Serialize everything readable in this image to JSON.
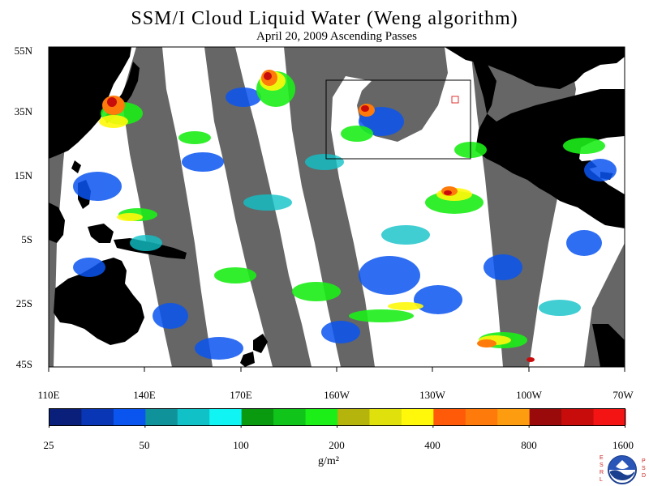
{
  "title": "SSM/I Cloud Liquid Water (Weng algorithm)",
  "subtitle": "April 20, 2009  Ascending Passes",
  "lat_labels": [
    "55N",
    "35N",
    "15N",
    "5S",
    "25S",
    "45S"
  ],
  "lon_labels": [
    "110E",
    "140E",
    "170E",
    "160W",
    "130W",
    "100W",
    "70W"
  ],
  "colorbar": {
    "tick_labels": [
      "25",
      "50",
      "100",
      "200",
      "400",
      "800",
      "1600"
    ],
    "unit": "g/m²",
    "colors": [
      "#0a1f7a",
      "#0836b4",
      "#0a55f0",
      "#10929a",
      "#10c2c8",
      "#10f4f4",
      "#0a9a10",
      "#10c41a",
      "#1cee18",
      "#b4b40c",
      "#e0e00c",
      "#fff80a",
      "#fe5a08",
      "#fe7a0a",
      "#fe9c10",
      "#9a0a0a",
      "#c80c0c",
      "#f41414"
    ]
  },
  "map_colors": {
    "ocean_clear": "#ffffff",
    "land": "#000000",
    "no_data_swath": "#666666",
    "highlight_box": "#000000",
    "marker": "#e03030"
  },
  "logo": {
    "name": "NOAA",
    "left_letters": [
      "E",
      "S",
      "R",
      "L"
    ],
    "right_letters": [
      "P",
      "S",
      "D"
    ]
  }
}
